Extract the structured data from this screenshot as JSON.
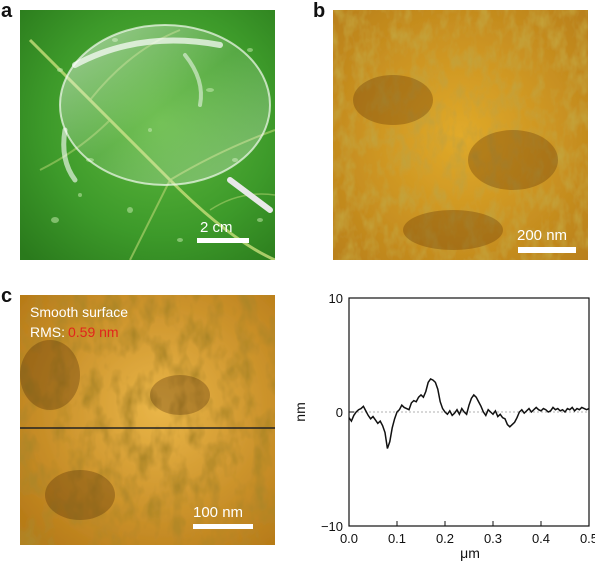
{
  "panels": {
    "a": {
      "letter": "a",
      "scalebar_label": "2 cm"
    },
    "b": {
      "letter": "b",
      "scalebar_label": "200 nm"
    },
    "c": {
      "letter": "c",
      "overlay_line1": "Smooth surface",
      "rms_prefix": "RMS: ",
      "rms_value": "0.59 nm",
      "scalebar_label": "100 nm"
    }
  },
  "colors": {
    "leaf_green": "#3f9a2c",
    "afm_gold": "#c8901a",
    "afm_dark": "#6b3a05",
    "rms_red": "#e0251c",
    "profile_line": "#111111"
  },
  "chart_data": {
    "type": "line",
    "title": "",
    "xlabel": "μm",
    "ylabel": "nm",
    "xlim": [
      0.0,
      0.5
    ],
    "ylim": [
      -10,
      10
    ],
    "xticks": [
      "0.0",
      "0.1",
      "0.2",
      "0.3",
      "0.4",
      "0.5"
    ],
    "yticks": [
      "10",
      "0",
      "−10"
    ],
    "zero_line": true,
    "series": [
      {
        "x": [
          0.0,
          0.005,
          0.01,
          0.015,
          0.02,
          0.025,
          0.03,
          0.035,
          0.04,
          0.045,
          0.05,
          0.055,
          0.06,
          0.065,
          0.07,
          0.075,
          0.08,
          0.085,
          0.09,
          0.095,
          0.1,
          0.105,
          0.11,
          0.115,
          0.12,
          0.125,
          0.13,
          0.135,
          0.14,
          0.145,
          0.15,
          0.155,
          0.16,
          0.165,
          0.17,
          0.175,
          0.18,
          0.185,
          0.19,
          0.195,
          0.2,
          0.205,
          0.21,
          0.215,
          0.22,
          0.225,
          0.23,
          0.235,
          0.24,
          0.245,
          0.25,
          0.255,
          0.26,
          0.265,
          0.27,
          0.275,
          0.28,
          0.285,
          0.29,
          0.295,
          0.3,
          0.305,
          0.31,
          0.315,
          0.32,
          0.325,
          0.33,
          0.335,
          0.34,
          0.345,
          0.35,
          0.355,
          0.36,
          0.365,
          0.37,
          0.375,
          0.38,
          0.385,
          0.39,
          0.395,
          0.4,
          0.405,
          0.41,
          0.415,
          0.42,
          0.425,
          0.43,
          0.435,
          0.44,
          0.445,
          0.45,
          0.455,
          0.46,
          0.465,
          0.47,
          0.475,
          0.48,
          0.485,
          0.49,
          0.495,
          0.5
        ],
        "y": [
          -0.5,
          -0.8,
          -0.3,
          0.0,
          0.2,
          0.3,
          0.5,
          0.1,
          -0.3,
          -0.6,
          -0.4,
          -0.7,
          -1.0,
          -0.8,
          -1.2,
          -1.8,
          -3.2,
          -2.6,
          -1.4,
          -0.6,
          0.0,
          0.2,
          0.6,
          0.4,
          0.3,
          0.2,
          0.8,
          1.0,
          0.9,
          1.3,
          1.5,
          1.3,
          1.8,
          2.6,
          2.9,
          2.8,
          2.6,
          2.0,
          0.9,
          0.3,
          0.0,
          -0.2,
          0.1,
          -0.3,
          -0.1,
          0.2,
          -0.2,
          0.3,
          0.0,
          -0.2,
          0.6,
          1.2,
          1.5,
          1.3,
          0.9,
          0.5,
          0.0,
          -0.3,
          0.2,
          0.0,
          -0.2,
          0.1,
          -0.4,
          -0.2,
          -0.5,
          -0.6,
          -1.1,
          -1.3,
          -1.1,
          -0.9,
          -0.5,
          0.0,
          0.2,
          -0.1,
          0.1,
          0.3,
          0.0,
          0.2,
          0.4,
          0.2,
          0.1,
          0.3,
          0.2,
          0.0,
          0.1,
          0.4,
          0.2,
          0.3,
          0.1,
          0.2,
          0.0,
          0.3,
          0.2,
          0.4,
          0.1,
          0.3,
          0.2,
          0.4,
          0.3,
          0.2,
          0.3
        ]
      }
    ]
  }
}
